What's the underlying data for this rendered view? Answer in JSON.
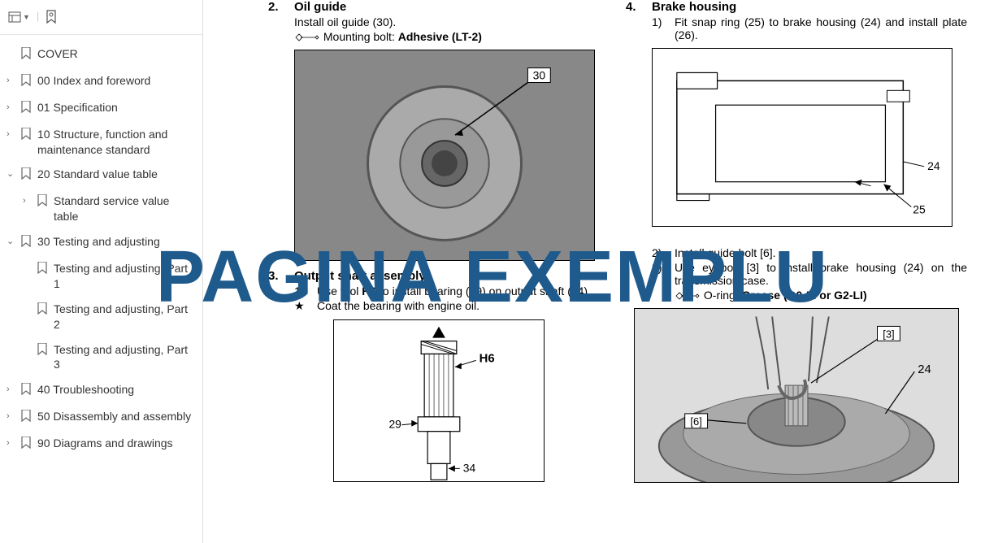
{
  "watermark_text": "PAGINA EXEMPLU",
  "watermark_color": "#1f5a8c",
  "sidebar": {
    "items": [
      {
        "expand": "",
        "label": "COVER",
        "indent": 0
      },
      {
        "expand": "›",
        "label": "00 Index and foreword",
        "indent": 0
      },
      {
        "expand": "›",
        "label": "01 Specification",
        "indent": 0
      },
      {
        "expand": "›",
        "label": "10 Structure, function and maintenance standard",
        "indent": 0
      },
      {
        "expand": "⌄",
        "label": "20 Standard value table",
        "indent": 0
      },
      {
        "expand": "›",
        "label": "Standard service value table",
        "indent": 1
      },
      {
        "expand": "⌄",
        "label": "30 Testing and adjusting",
        "indent": 0
      },
      {
        "expand": "",
        "label": "Testing and adjusting, Part 1",
        "indent": 1
      },
      {
        "expand": "",
        "label": "Testing and adjusting, Part 2",
        "indent": 1
      },
      {
        "expand": "",
        "label": "Testing and adjusting, Part 3",
        "indent": 1
      },
      {
        "expand": "›",
        "label": "40 Troubleshooting",
        "indent": 0
      },
      {
        "expand": "›",
        "label": "50 Disassembly and assembly",
        "indent": 0
      },
      {
        "expand": "›",
        "label": "90 Diagrams and drawings",
        "indent": 0
      }
    ]
  },
  "left_col": {
    "s1": {
      "num": "2.",
      "title": "Oil guide",
      "l1": "Install oil guide (30).",
      "l2_pre": "Mounting bolt: ",
      "l2_bold": "Adhesive (LT-2)",
      "fig_callouts": [
        "30"
      ]
    },
    "s2": {
      "num": "3.",
      "title": "Output shaft assembly",
      "sub1_num": "1)",
      "sub1_a": "Use tool ",
      "sub1_b": "H6",
      "sub1_c": " to install bearing (29) on output shaft (34).",
      "star_line": "Coat the bearing with engine oil.",
      "fig_callouts": [
        "H6",
        "29",
        "34"
      ]
    }
  },
  "right_col": {
    "s1": {
      "num": "4.",
      "title": "Brake housing",
      "sub1_num": "1)",
      "sub1": "Fit snap ring (25) to brake housing (24) and install plate (26).",
      "fig_callouts": [
        "24",
        "25"
      ]
    },
    "s2": {
      "sub2_num": "2)",
      "sub2": "Install guide bolt [6].",
      "sub3_num": "3)",
      "sub3": "Use eyebolt [3] to install brake housing (24) on the transmission case.",
      "oring_pre": "O-ring: ",
      "oring_bold": "Grease (G0-LI or G2-LI)",
      "fig_callouts": [
        "[3]",
        "24",
        "[6]"
      ]
    }
  }
}
